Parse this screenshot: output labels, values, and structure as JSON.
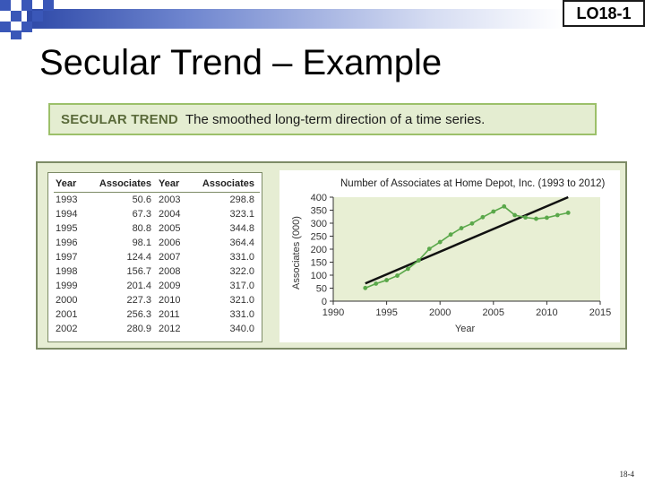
{
  "header": {
    "lo_badge": "LO18-1"
  },
  "slide_title": "Secular Trend – Example",
  "definition": {
    "term": "SECULAR TREND",
    "text": "The smoothed long-term direction of a time series."
  },
  "table": {
    "headers": [
      "Year",
      "Associates",
      "Year",
      "Associates"
    ],
    "rows": [
      [
        "1993",
        "50.6",
        "2003",
        "298.8"
      ],
      [
        "1994",
        "67.3",
        "2004",
        "323.1"
      ],
      [
        "1995",
        "80.8",
        "2005",
        "344.8"
      ],
      [
        "1996",
        "98.1",
        "2006",
        "364.4"
      ],
      [
        "1997",
        "124.4",
        "2007",
        "331.0"
      ],
      [
        "1998",
        "156.7",
        "2008",
        "322.0"
      ],
      [
        "1999",
        "201.4",
        "2009",
        "317.0"
      ],
      [
        "2000",
        "227.3",
        "2010",
        "321.0"
      ],
      [
        "2001",
        "256.3",
        "2011",
        "331.0"
      ],
      [
        "2002",
        "280.9",
        "2012",
        "340.0"
      ]
    ]
  },
  "chart_data": {
    "type": "line",
    "title": "Number of Associates at Home Depot, Inc. (1993 to 2012)",
    "xlabel": "Year",
    "ylabel": "Associates (000)",
    "xlim": [
      1990,
      2015
    ],
    "ylim": [
      0,
      400
    ],
    "xticks": [
      1990,
      1995,
      2000,
      2005,
      2010,
      2015
    ],
    "yticks": [
      0,
      50,
      100,
      150,
      200,
      250,
      300,
      350,
      400
    ],
    "grid": false,
    "series": [
      {
        "x": [
          1993,
          1994,
          1995,
          1996,
          1997,
          1998,
          1999,
          2000,
          2001,
          2002,
          2003,
          2004,
          2005,
          2006,
          2007,
          2008,
          2009,
          2010,
          2011,
          2012
        ],
        "values": [
          50.6,
          67.3,
          80.8,
          98.1,
          124.4,
          156.7,
          201.4,
          227.3,
          256.3,
          280.9,
          298.8,
          323.1,
          344.8,
          364.4,
          331.0,
          322.0,
          317.0,
          321.0,
          331.0,
          340.0
        ],
        "color": "#5aa84a"
      }
    ],
    "trend_line": {
      "x": [
        1993,
        2012
      ],
      "values": [
        68,
        400
      ],
      "color": "#111111"
    }
  },
  "footer": {
    "page": "18-4"
  }
}
